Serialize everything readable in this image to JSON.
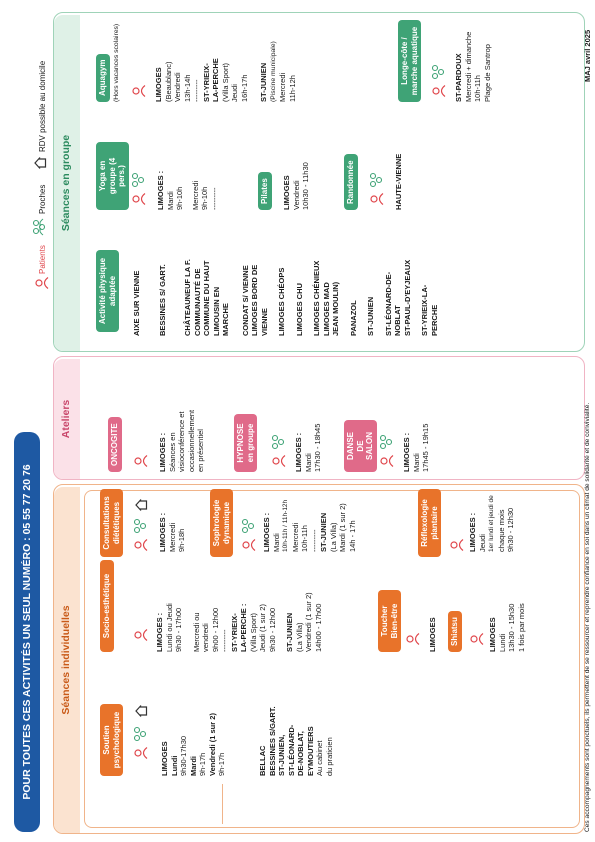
{
  "header": {
    "title": "POUR TOUTES CES ACTIVITÉS UN SEUL NUMÉRO : 05 55 77 20 76"
  },
  "legend": {
    "patients": "Patients",
    "proches": "Proches",
    "rdv": "RDV possible au domicile"
  },
  "individuelles": {
    "title": "Séances individuelles",
    "soutien": {
      "tag": "Soutien psychologique",
      "l1": "LIMOGES",
      "l2": "Lundi",
      "l3": "9h30-17h30",
      "l4": "Mardi",
      "l5": "9h-17h",
      "l6": "Vendredi (1 sur 2)",
      "l7": "9h-17h",
      "l8": "BELLAC",
      "l9": "BESSINES S/GART.",
      "l10": "ST-JUNIEN,",
      "l11": "ST-LÉONARD-",
      "l12": "DE-NOBLAT,",
      "l13": "EYMOUTIERS",
      "l14": "Au cabinet",
      "l15": "du praticien"
    },
    "socio": {
      "tag": "Socio-esthétique",
      "l1": "LIMOGES :",
      "l2": "Lundi ou Jeudi",
      "l3": "9h30 - 17h00",
      "l4": "Mercredi ou",
      "l5": "vendredi",
      "l6": "9h00 - 12h00",
      "dash": "---------",
      "l7": "ST-YRIEIX-",
      "l8": "LA-PERCHE :",
      "l9": "(Villa Sport)",
      "l10": "Jeudi (1 sur 2)",
      "l11": "9h30 - 12h00",
      "l12": "ST-JUNIEN",
      "l13": "(La Villa)",
      "l14": "Vendredi (1 sur 2)",
      "l15": "14h00 - 17h00"
    },
    "toucher": {
      "tag": "Toucher Bien-être",
      "l1": "LIMOGES"
    },
    "shiatsu": {
      "tag": "Shiatsu",
      "l1": "LIMOGES",
      "l2": "Lundi",
      "l3": "13h30 - 15h30",
      "l4": "1 fois par mois"
    },
    "dietetique": {
      "tag": "Consultations diététiques",
      "l1": "LIMOGES :",
      "l2": "Mercredi",
      "l3": "9h-18h"
    },
    "sophro": {
      "tag": "Sophrologie dynamique",
      "l1": "LIMOGES :",
      "l2": "Mardi",
      "l3": "10h-11h / 11h-12h",
      "l4": "Mercredi",
      "l5": "10h-11h",
      "dash": "---------",
      "l6": "ST-JUNIEN",
      "l7": "(La Villa)",
      "l8": "Mardi (1 sur 2)",
      "l9": "14h - 17h"
    },
    "reflexo": {
      "tag": "Réflexologie plantaire",
      "l1": "LIMOGES :",
      "l2": "Jeudi",
      "l3": "1er lundi et jeudi de",
      "l4": "chaque mois",
      "l5": "9h30 - 12h30"
    }
  },
  "ateliers": {
    "title": "Ateliers",
    "onco": {
      "tag": "ONCOGITE",
      "l1": "LIMOGES :",
      "l2": "Séances en",
      "l3": "visioconférence et",
      "l4": "occasionnellement",
      "l5": "en présentiel"
    },
    "hypnose": {
      "tag": "HYPNOSE en groupe",
      "l1": "LIMOGES :",
      "l2": "Mardi",
      "l3": "17h30 - 18h45"
    },
    "danse": {
      "tag": "DANSE DE SALON",
      "l1": "LIMOGES :",
      "l2": "Mardi",
      "l3": "17h45 - 19h15"
    }
  },
  "groupe": {
    "title": "Séances en groupe",
    "apa": {
      "tag": "Activité physique adaptée",
      "items": [
        "AIXE SUR VIENNE",
        "BESSINES S/ GART.",
        "CHÂTEAUNEUF LA F.",
        "COMMUNAUTÉ DE",
        "COMMUNE DU HAUT",
        "LIMOUSIN EN",
        "MARCHE",
        "CONDAT S/ VIENNE",
        "LIMOGES BORD DE",
        "VIENNE",
        "LIMOGES CHÉOPS",
        "LIMOGES CHU",
        "LIMOGES CHÉNIEUX",
        "LIMOGES MAD",
        "JEAN MOULIN)",
        "PANAZOL",
        "ST-JUNIEN",
        "ST-LÉONARD-DE-",
        "NOBLAT",
        "ST-PAUL-D'EYJEAUX",
        "ST-YRIEIX-LA-",
        "PERCHE"
      ]
    },
    "yoga": {
      "tag": "Yoga en groupe (4 pers.)",
      "l1": "LIMOGES :",
      "l2": "Mardi",
      "l3": "9h-10h",
      "l4": "Mercredi",
      "l5": "9h-10h",
      "dash": "---------"
    },
    "pilates": {
      "tag": "Pilates",
      "l1": "LIMOGES",
      "l2": "Vendredi",
      "l3": "10h30 - 11h30"
    },
    "rando": {
      "tag": "Randonnée",
      "l1": "HAUTE-VIENNE"
    },
    "aquagym": {
      "tag": "Aquagym",
      "sub": "(Hors vacances scolaires)",
      "l1": "LIMOGES",
      "l2": "(Beaublanc)",
      "l3": "Vendredi",
      "l4": "13h-14h",
      "dash": "---------",
      "l5": "ST-YRIEIX-",
      "l6": "LA-PERCHE",
      "l7": "(Villa Sport)",
      "l8": "Jeudi",
      "l9": "16h-17h",
      "l10": "ST-JUNIEN",
      "l11": "(Piscine municipale)",
      "l12": "Mercredi",
      "l13": "11h-12h"
    },
    "longe": {
      "tag": "Longe-côte / marche aquatique",
      "l1": "ST-PARDOUX",
      "l2": "Mercredi + dimanche",
      "l3": "10h-11h",
      "l4": "Plage de Santrop"
    }
  },
  "footer": {
    "note": "Ces accompagnements sont ponctuels, ils permettent de se ressourcer et reprendre confiance en soi dans un climat de solidarité et de convivialité.",
    "maj": "MAJ avril 2025"
  },
  "colors": {
    "header": "#1e59a3",
    "orange": "#e8732a",
    "pink": "#e06a89",
    "green": "#3fa376"
  }
}
